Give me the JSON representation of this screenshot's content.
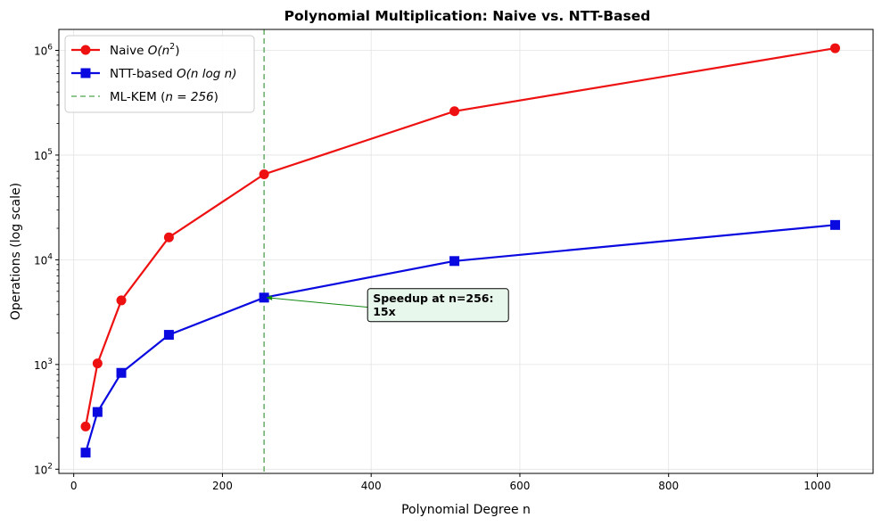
{
  "chart_data": {
    "type": "line",
    "title": "Polynomial Multiplication: Naive vs. NTT-Based",
    "xlabel": "Polynomial Degree n",
    "ylabel": "Operations (log scale)",
    "xlim": [
      -20,
      1075
    ],
    "ylim_log10": [
      1.96,
      6.2
    ],
    "yscale": "log",
    "grid": true,
    "legend_position": "top-left",
    "x_ticks": [
      0,
      200,
      400,
      600,
      800,
      1000
    ],
    "x_tick_labels": [
      "0",
      "200",
      "400",
      "600",
      "800",
      "1000"
    ],
    "y_ticks": [
      100,
      1000,
      10000,
      100000,
      1000000
    ],
    "y_tick_labels": [
      "10",
      "10",
      "10",
      "10",
      "10"
    ],
    "y_tick_exponents": [
      "2",
      "3",
      "4",
      "5",
      "6"
    ],
    "series": [
      {
        "name": "Naive O(n²)",
        "legend_main": "Naive ",
        "legend_math": "O(n",
        "legend_sup": "2",
        "legend_tail": ")",
        "color": "#ee1111",
        "marker": "circle",
        "x": [
          16,
          32,
          64,
          128,
          256,
          512,
          1024
        ],
        "y": [
          256,
          1024,
          4096,
          16384,
          65536,
          262144,
          1048576
        ]
      },
      {
        "name": "NTT-based O(n log n)",
        "legend_main": "NTT-based ",
        "legend_math": "O(n log n)",
        "color": "#0a0ae0",
        "marker": "square",
        "x": [
          16,
          32,
          64,
          128,
          256,
          512,
          1024
        ],
        "y": [
          144,
          352,
          832,
          1920,
          4352,
          9728,
          21504
        ]
      }
    ],
    "reference_line": {
      "name": "ML-KEM (n = 256)",
      "legend_main": "ML-KEM (",
      "legend_math": "n = 256",
      "legend_tail": ")",
      "x": 256,
      "color": "#6db36d",
      "style": "dashed"
    },
    "annotation": {
      "line1": "Speedup at n=256:",
      "line2": "15x",
      "target_x": 256,
      "target_y": 4352,
      "text_x": 400,
      "text_y": 3000,
      "arrow_color": "#118811",
      "box_fill": "#e8f7ec"
    }
  }
}
